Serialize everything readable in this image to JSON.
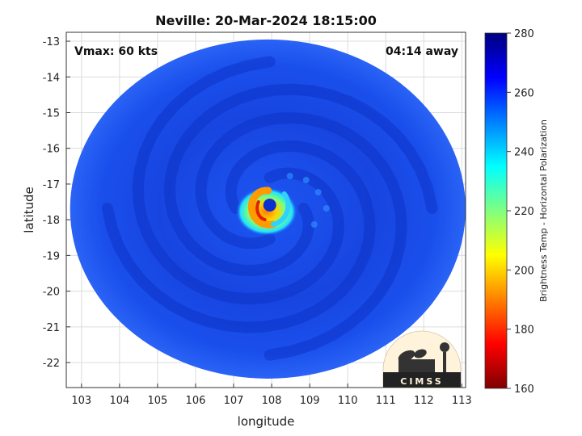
{
  "chart_data": {
    "type": "heatmap",
    "title": "Neville: 20-Mar-2024 18:15:00",
    "annotations": {
      "left": "Vmax: 60 kts",
      "right": "04:14 away"
    },
    "xlabel": "longitude",
    "ylabel": "latitude",
    "xlim": [
      102.6,
      113.1
    ],
    "ylim": [
      -22.7,
      -12.75
    ],
    "x_ticks": [
      103,
      104,
      105,
      106,
      107,
      108,
      109,
      110,
      111,
      112,
      113
    ],
    "y_ticks": [
      -13,
      -14,
      -15,
      -16,
      -17,
      -18,
      -19,
      -20,
      -21,
      -22
    ],
    "grid": true,
    "colorbar": {
      "label": "Brightness Temp - Horizontal Polarization",
      "range": [
        160,
        280
      ],
      "ticks": [
        280,
        260,
        240,
        220,
        200,
        180,
        160
      ],
      "colormap": [
        "#7f0000",
        "#ff0000",
        "#ff8000",
        "#ffff00",
        "#80ff80",
        "#00ffff",
        "#0080ff",
        "#0000ff",
        "#00007f"
      ]
    },
    "swath": {
      "center": [
        107.9,
        -17.7
      ],
      "radius_lon": 5.2,
      "radius_lat": 4.75
    },
    "storm": {
      "center": [
        107.95,
        -17.68
      ],
      "eye_temp": 250,
      "eyewall_min_temp": 185,
      "background_temp": 262
    },
    "logo_text": "CIMSS"
  },
  "colors": {
    "background_blue": "#1a4fe8",
    "dark_blue": "#0b2fc0",
    "grid": "#dcdcdc"
  }
}
